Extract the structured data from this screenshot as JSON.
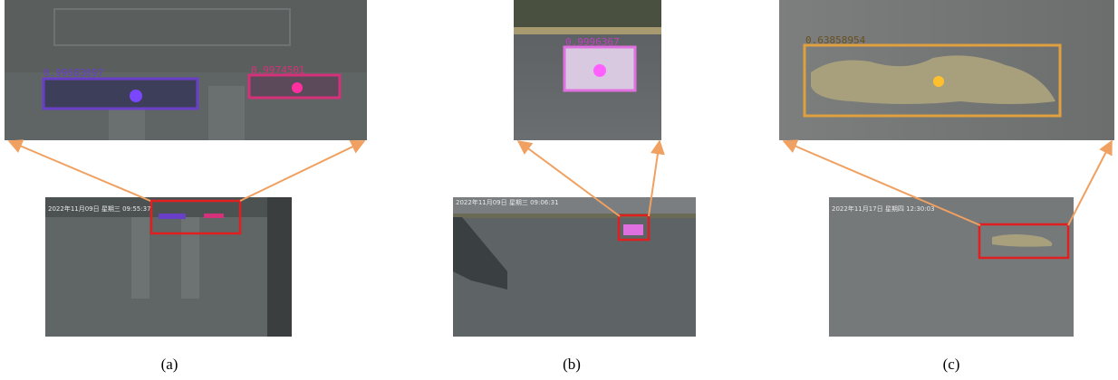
{
  "panels": [
    {
      "caption": "(a)",
      "timestamp": "2022年11月09日 星期三 09:55:37",
      "detections": [
        {
          "score": "0.99683097"
        },
        {
          "score": "0.9974501"
        }
      ]
    },
    {
      "caption": "(b)",
      "timestamp": "2022年11月09日 星期三 09:06:31",
      "detections": [
        {
          "score": "0.9996367"
        }
      ]
    },
    {
      "caption": "(c)",
      "timestamp": "2022年11月17日 星期四 12:30:03",
      "detections": [
        {
          "score": "0.63858954"
        }
      ]
    }
  ]
}
